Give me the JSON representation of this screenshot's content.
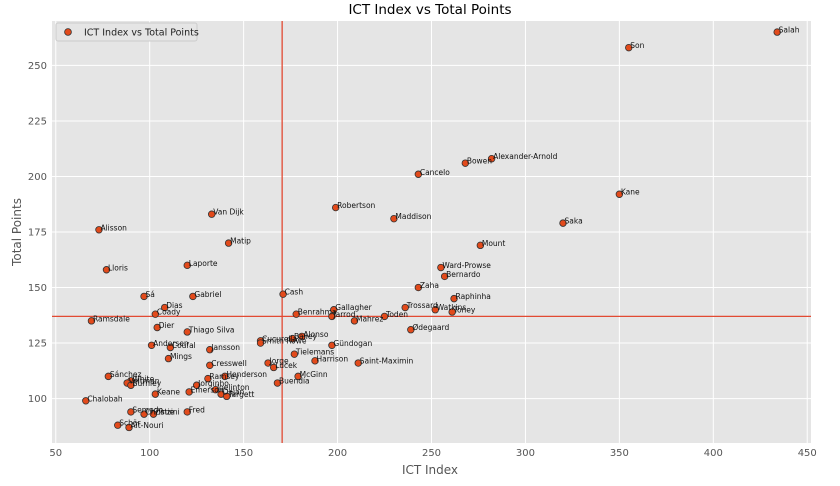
{
  "chart_data": {
    "type": "scatter",
    "title": "ICT Index vs Total Points",
    "xlabel": "ICT Index",
    "ylabel": "Total Points",
    "xlim": [
      48,
      452
    ],
    "ylim": [
      80,
      270
    ],
    "xticks": [
      50,
      100,
      150,
      200,
      250,
      300,
      350,
      400,
      450
    ],
    "yticks": [
      100,
      125,
      150,
      175,
      200,
      225,
      250
    ],
    "grid": true,
    "legend": {
      "placement": "top-left",
      "entries": [
        "ICT Index vs Total Points"
      ]
    },
    "reference_lines": {
      "x": 170.5,
      "y": 137
    },
    "colors": {
      "marker": "#E24A1B",
      "marker_edge": "#333333",
      "ref_line": "#E24A33",
      "plot_bg": "#E5E5E5",
      "grid": "#FFFFFF"
    },
    "series": [
      {
        "name": "ICT Index vs Total Points",
        "points": [
          {
            "label": "Salah",
            "x": 434,
            "y": 265
          },
          {
            "label": "Son",
            "x": 355,
            "y": 258
          },
          {
            "label": "Alexander-Arnold",
            "x": 282,
            "y": 208
          },
          {
            "label": "Bowen",
            "x": 268,
            "y": 206
          },
          {
            "label": "Cancelo",
            "x": 243,
            "y": 201
          },
          {
            "label": "Kane",
            "x": 350,
            "y": 192
          },
          {
            "label": "Robertson",
            "x": 199,
            "y": 186
          },
          {
            "label": "Van Dijk",
            "x": 133,
            "y": 183
          },
          {
            "label": "Maddison",
            "x": 230,
            "y": 181
          },
          {
            "label": "Saka",
            "x": 320,
            "y": 179
          },
          {
            "label": "Alisson",
            "x": 73,
            "y": 176
          },
          {
            "label": "Matip",
            "x": 142,
            "y": 170
          },
          {
            "label": "Mount",
            "x": 276,
            "y": 169
          },
          {
            "label": "Laporte",
            "x": 120,
            "y": 160
          },
          {
            "label": "Lloris",
            "x": 77,
            "y": 158
          },
          {
            "label": "Ward-Prowse",
            "x": 255,
            "y": 159
          },
          {
            "label": "Bernardo",
            "x": 257,
            "y": 155
          },
          {
            "label": "Zaha",
            "x": 243,
            "y": 150
          },
          {
            "label": "Cash",
            "x": 171,
            "y": 147
          },
          {
            "label": "Sá",
            "x": 97,
            "y": 146
          },
          {
            "label": "Gabriel",
            "x": 123,
            "y": 146
          },
          {
            "label": "Raphinha",
            "x": 262,
            "y": 145
          },
          {
            "label": "Dias",
            "x": 108,
            "y": 141
          },
          {
            "label": "Trossard",
            "x": 236,
            "y": 141
          },
          {
            "label": "Gallagher",
            "x": 198,
            "y": 140
          },
          {
            "label": "Watkins",
            "x": 252,
            "y": 140
          },
          {
            "label": "Toney",
            "x": 261,
            "y": 139
          },
          {
            "label": "Coady",
            "x": 103,
            "y": 138
          },
          {
            "label": "Benrahma",
            "x": 178,
            "y": 138
          },
          {
            "label": "Jarrod",
            "x": 197,
            "y": 137
          },
          {
            "label": "Toden",
            "x": 225,
            "y": 137
          },
          {
            "label": "Mahrez",
            "x": 209,
            "y": 135
          },
          {
            "label": "Ramsdale",
            "x": 69,
            "y": 135
          },
          {
            "label": "Dier",
            "x": 104,
            "y": 132
          },
          {
            "label": "Ødegaard",
            "x": 239,
            "y": 131
          },
          {
            "label": "Thiago Silva",
            "x": 120,
            "y": 130
          },
          {
            "label": "Alonso",
            "x": 181,
            "y": 128
          },
          {
            "label": "Bailey",
            "x": 176,
            "y": 127
          },
          {
            "label": "Cucurella",
            "x": 159,
            "y": 126
          },
          {
            "label": "Smith Rowe",
            "x": 159,
            "y": 125
          },
          {
            "label": "Andersen",
            "x": 101,
            "y": 124
          },
          {
            "label": "Gündogan",
            "x": 197,
            "y": 124
          },
          {
            "label": "Coufal",
            "x": 111,
            "y": 123
          },
          {
            "label": "Jansson",
            "x": 132,
            "y": 122
          },
          {
            "label": "Tielemans",
            "x": 177,
            "y": 120
          },
          {
            "label": "Mings",
            "x": 110,
            "y": 118
          },
          {
            "label": "Harrison",
            "x": 188,
            "y": 117
          },
          {
            "label": "Saint-Maximin",
            "x": 211,
            "y": 116
          },
          {
            "label": "Jorge",
            "x": 163,
            "y": 116
          },
          {
            "label": "Cresswell",
            "x": 132,
            "y": 115
          },
          {
            "label": "Lucek",
            "x": 166,
            "y": 114
          },
          {
            "label": "McGinn",
            "x": 179,
            "y": 110
          },
          {
            "label": "Sánchez",
            "x": 78,
            "y": 110
          },
          {
            "label": "Henderson",
            "x": 140,
            "y": 110
          },
          {
            "label": "Ramsey",
            "x": 131,
            "y": 109
          },
          {
            "label": "White",
            "x": 90,
            "y": 108
          },
          {
            "label": "Buendía",
            "x": 168,
            "y": 107
          },
          {
            "label": "Veltman",
            "x": 88,
            "y": 107
          },
          {
            "label": "Burnley",
            "x": 90,
            "y": 106
          },
          {
            "label": "Jorginho",
            "x": 125,
            "y": 106
          },
          {
            "label": "Joelinton",
            "x": 135,
            "y": 104
          },
          {
            "label": "Emerson",
            "x": 121,
            "y": 103
          },
          {
            "label": "Dajan",
            "x": 138,
            "y": 102
          },
          {
            "label": "Keane",
            "x": 103,
            "y": 102
          },
          {
            "label": "Targett",
            "x": 141,
            "y": 101
          },
          {
            "label": "Chalobah",
            "x": 66,
            "y": 99
          },
          {
            "label": "Semedo",
            "x": 90,
            "y": 94
          },
          {
            "label": "Fred",
            "x": 120,
            "y": 94
          },
          {
            "label": "Christie",
            "x": 97,
            "y": 93
          },
          {
            "label": "Zinzini",
            "x": 102,
            "y": 93
          },
          {
            "label": "Schär",
            "x": 83,
            "y": 88
          },
          {
            "label": "Aït-Nouri",
            "x": 89,
            "y": 87
          }
        ]
      }
    ]
  }
}
